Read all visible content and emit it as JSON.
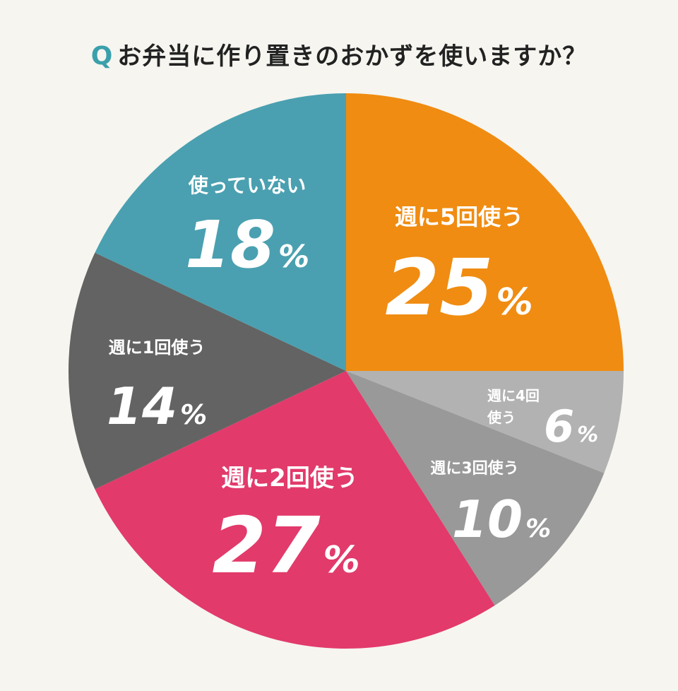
{
  "title": {
    "prefix": "Q",
    "text": "お弁当に作り置きのおかずを使いますか？"
  },
  "chart_data": {
    "type": "pie",
    "title": "お弁当に作り置きのおかずを使いますか？",
    "start_angle": "12 o'clock",
    "direction": "clockwise",
    "slices": [
      {
        "label": "週に5回使う",
        "value": 25,
        "color": "#f08c11"
      },
      {
        "label": "週に4回使う",
        "value": 6,
        "color": "#b2b2b2"
      },
      {
        "label": "週に3回使う",
        "value": 10,
        "color": "#999999"
      },
      {
        "label": "週に2回使う",
        "value": 27,
        "color": "#e23a6b"
      },
      {
        "label": "週に1回使う",
        "value": 14,
        "color": "#636363"
      },
      {
        "label": "使っていない",
        "value": 18,
        "color": "#4aa0b0"
      }
    ],
    "labels_display": [
      {
        "lines": [
          "週に5回使う"
        ]
      },
      {
        "lines": [
          "週に4回",
          "使う"
        ]
      },
      {
        "lines": [
          "週に3回使う"
        ]
      },
      {
        "lines": [
          "週に2回使う"
        ]
      },
      {
        "lines": [
          "週に1回使う"
        ]
      },
      {
        "lines": [
          "使っていない"
        ]
      }
    ],
    "unit": "%"
  }
}
